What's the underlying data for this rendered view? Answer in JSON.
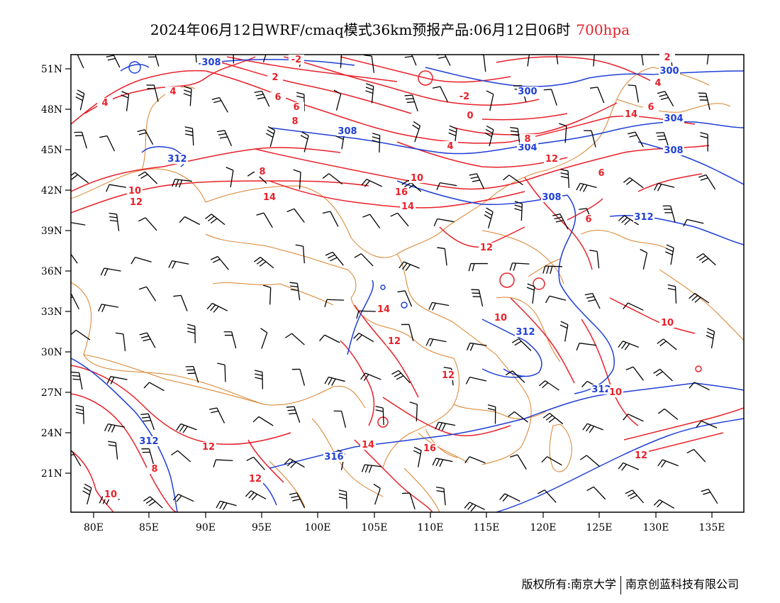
{
  "title": {
    "main": "2024年06月12日WRF/cmaq模式36km预报产品:06月12日06时",
    "level": "700hpa"
  },
  "axes": {
    "lat_labels": [
      "51N",
      "48N",
      "45N",
      "42N",
      "39N",
      "36N",
      "33N",
      "30N",
      "27N",
      "24N",
      "21N"
    ],
    "lon_labels": [
      "80E",
      "85E",
      "90E",
      "95E",
      "100E",
      "105E",
      "110E",
      "115E",
      "120E",
      "125E",
      "130E",
      "135E"
    ]
  },
  "colors": {
    "temperature_contour": "#e8212a",
    "height_contour": "#1f3fd6",
    "boundaries": "#d9822b",
    "wind_barbs": "#000000"
  },
  "height_labels": [
    "308",
    "300",
    "300",
    "304",
    "308",
    "304",
    "308",
    "312",
    "308",
    "312",
    "312",
    "312",
    "312",
    "316"
  ],
  "temp_labels": [
    "-2",
    "2",
    "4",
    "4",
    "6",
    "6",
    "8",
    "8",
    "10",
    "12",
    "14",
    "16",
    "-2",
    "0",
    "4",
    "8",
    "10",
    "12",
    "14",
    "2",
    "4",
    "6",
    "8",
    "6",
    "6",
    "12",
    "10",
    "14",
    "12",
    "12",
    "10",
    "12",
    "12",
    "14",
    "16",
    "12",
    "8",
    "10",
    "10",
    "14"
  ],
  "footer": {
    "copyright": "版权所有:南京大学",
    "company": "南京创蓝科技有限公司"
  }
}
